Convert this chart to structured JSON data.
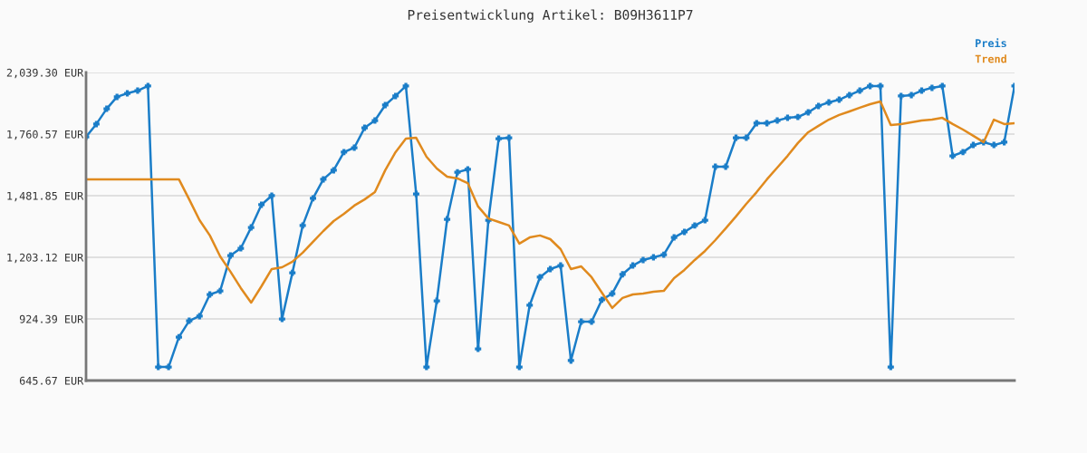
{
  "chart_data": {
    "type": "line",
    "title": "Preisentwicklung Artikel: B09H3611P7",
    "categories": [
      null,
      null,
      null,
      null,
      null,
      null,
      null,
      null,
      null,
      null,
      null,
      null,
      null,
      null,
      null,
      null,
      null,
      null,
      null,
      null,
      null,
      null,
      null,
      null,
      null,
      null,
      null,
      null,
      null,
      null,
      null,
      null,
      null,
      null,
      null,
      null,
      null,
      null,
      null,
      null,
      null,
      null,
      null,
      null,
      null,
      null,
      null,
      null,
      null,
      null,
      null,
      null,
      null,
      null,
      null,
      null,
      null,
      null,
      null,
      null,
      null,
      null,
      null,
      null,
      null,
      null,
      null,
      null,
      null,
      null,
      null,
      null,
      null,
      null,
      null,
      null,
      null,
      null,
      null,
      null,
      null,
      null,
      null,
      null,
      null,
      null,
      null,
      null,
      null,
      null,
      null
    ],
    "series": [
      {
        "name": "Preis",
        "color": "#1a7dc8",
        "marker": "cross",
        "values": [
          1748,
          1806,
          1875,
          1929,
          1945,
          1957,
          1978,
          707,
          707,
          842,
          916,
          937,
          1035,
          1051,
          1211,
          1244,
          1338,
          1441,
          1482,
          924,
          1133,
          1347,
          1470,
          1556,
          1597,
          1679,
          1699,
          1789,
          1822,
          1892,
          1933,
          1978,
          1490,
          707,
          1006,
          1375,
          1588,
          1601,
          789,
          1371,
          1740,
          1744,
          707,
          986,
          1113,
          1150,
          1166,
          736,
          912,
          912,
          1011,
          1039,
          1126,
          1166,
          1191,
          1203,
          1215,
          1293,
          1318,
          1347,
          1371,
          1613,
          1613,
          1744,
          1744,
          1810,
          1810,
          1822,
          1834,
          1838,
          1859,
          1888,
          1904,
          1916,
          1937,
          1957,
          1978,
          1978,
          707,
          1933,
          1937,
          1957,
          1970,
          1978,
          1662,
          1679,
          1711,
          1724,
          1711,
          1724,
          1978
        ]
      },
      {
        "name": "Trend",
        "color": "#e08a1e",
        "marker": "none",
        "values": [
          1556,
          1556,
          1556,
          1556,
          1556,
          1556,
          1556,
          1556,
          1556,
          1556,
          1465,
          1371,
          1302,
          1207,
          1138,
          1064,
          998,
          1072,
          1150,
          1158,
          1183,
          1224,
          1273,
          1322,
          1367,
          1400,
          1437,
          1465,
          1498,
          1597,
          1679,
          1740,
          1744,
          1658,
          1605,
          1568,
          1560,
          1539,
          1433,
          1379,
          1363,
          1347,
          1265,
          1293,
          1302,
          1285,
          1240,
          1150,
          1162,
          1113,
          1043,
          974,
          1019,
          1035,
          1039,
          1047,
          1051,
          1109,
          1146,
          1191,
          1232,
          1281,
          1334,
          1388,
          1445,
          1498,
          1556,
          1609,
          1662,
          1720,
          1769,
          1798,
          1826,
          1847,
          1863,
          1880,
          1896,
          1908,
          1802,
          1806,
          1814,
          1822,
          1826,
          1834,
          1806,
          1781,
          1753,
          1724,
          1826,
          1806,
          1810
        ]
      }
    ],
    "ylim": [
      645.67,
      2039.3
    ],
    "yticks": [
      {
        "value": 645.67,
        "label": "645.67 EUR"
      },
      {
        "value": 924.39,
        "label": "924.39 EUR"
      },
      {
        "value": 1203.12,
        "label": "1,203.12 EUR"
      },
      {
        "value": 1481.85,
        "label": "1,481.85 EUR"
      },
      {
        "value": 1760.57,
        "label": "1,760.57 EUR"
      },
      {
        "value": 2039.3,
        "label": "2,039.30 EUR"
      }
    ],
    "grid": "y",
    "legend": "top right",
    "line_style": "solid"
  }
}
